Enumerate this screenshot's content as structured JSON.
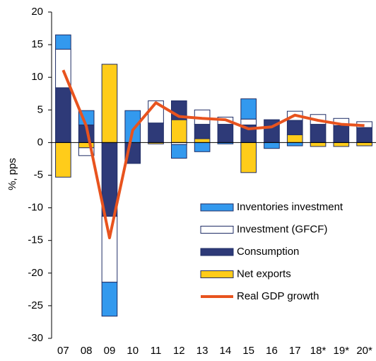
{
  "chart_data": {
    "type": "bar",
    "stacked": true,
    "y_label": "%, pps",
    "categories": [
      "07",
      "08",
      "09",
      "10",
      "11",
      "12",
      "13",
      "14",
      "15",
      "16",
      "17",
      "18*",
      "19*",
      "20*"
    ],
    "ylim": [
      -30,
      20
    ],
    "yticks": [
      -30,
      -25,
      -20,
      -15,
      -10,
      -5,
      0,
      5,
      10,
      15,
      20
    ],
    "legend": "lower right",
    "series": [
      {
        "name": "Inventories investment",
        "color": "#3399ee",
        "values": [
          2.2,
          2.2,
          -5.2,
          4.9,
          0,
          -2.1,
          -1.4,
          -0.2,
          3.1,
          -0.9,
          -0.5,
          0,
          0,
          0
        ]
      },
      {
        "name": "Investment (GFCF)",
        "color": "#ffffff",
        "values": [
          5.9,
          -1.2,
          -10.1,
          0,
          3.4,
          -0.3,
          2.2,
          1.1,
          0.9,
          0,
          1.4,
          1.5,
          1.1,
          0.9
        ]
      },
      {
        "name": "Consumption",
        "color": "#2e3a78",
        "values": [
          8.4,
          2.7,
          -11.3,
          -3.2,
          3.0,
          2.9,
          2.2,
          2.8,
          2.7,
          3.5,
          2.2,
          2.8,
          2.6,
          2.3
        ]
      },
      {
        "name": "Net exports",
        "color": "#ffcc1a",
        "values": [
          -5.3,
          -0.8,
          12.0,
          0,
          -0.2,
          3.5,
          0.6,
          0,
          -4.6,
          0,
          1.2,
          -0.6,
          -0.6,
          -0.5
        ]
      },
      {
        "name": "Real GDP growth",
        "type": "line",
        "color": "#e8531e",
        "values": [
          11.1,
          2.5,
          -14.6,
          1.9,
          6.1,
          4.0,
          3.7,
          3.5,
          2.1,
          2.4,
          4.2,
          3.4,
          2.8,
          2.6
        ]
      }
    ]
  }
}
